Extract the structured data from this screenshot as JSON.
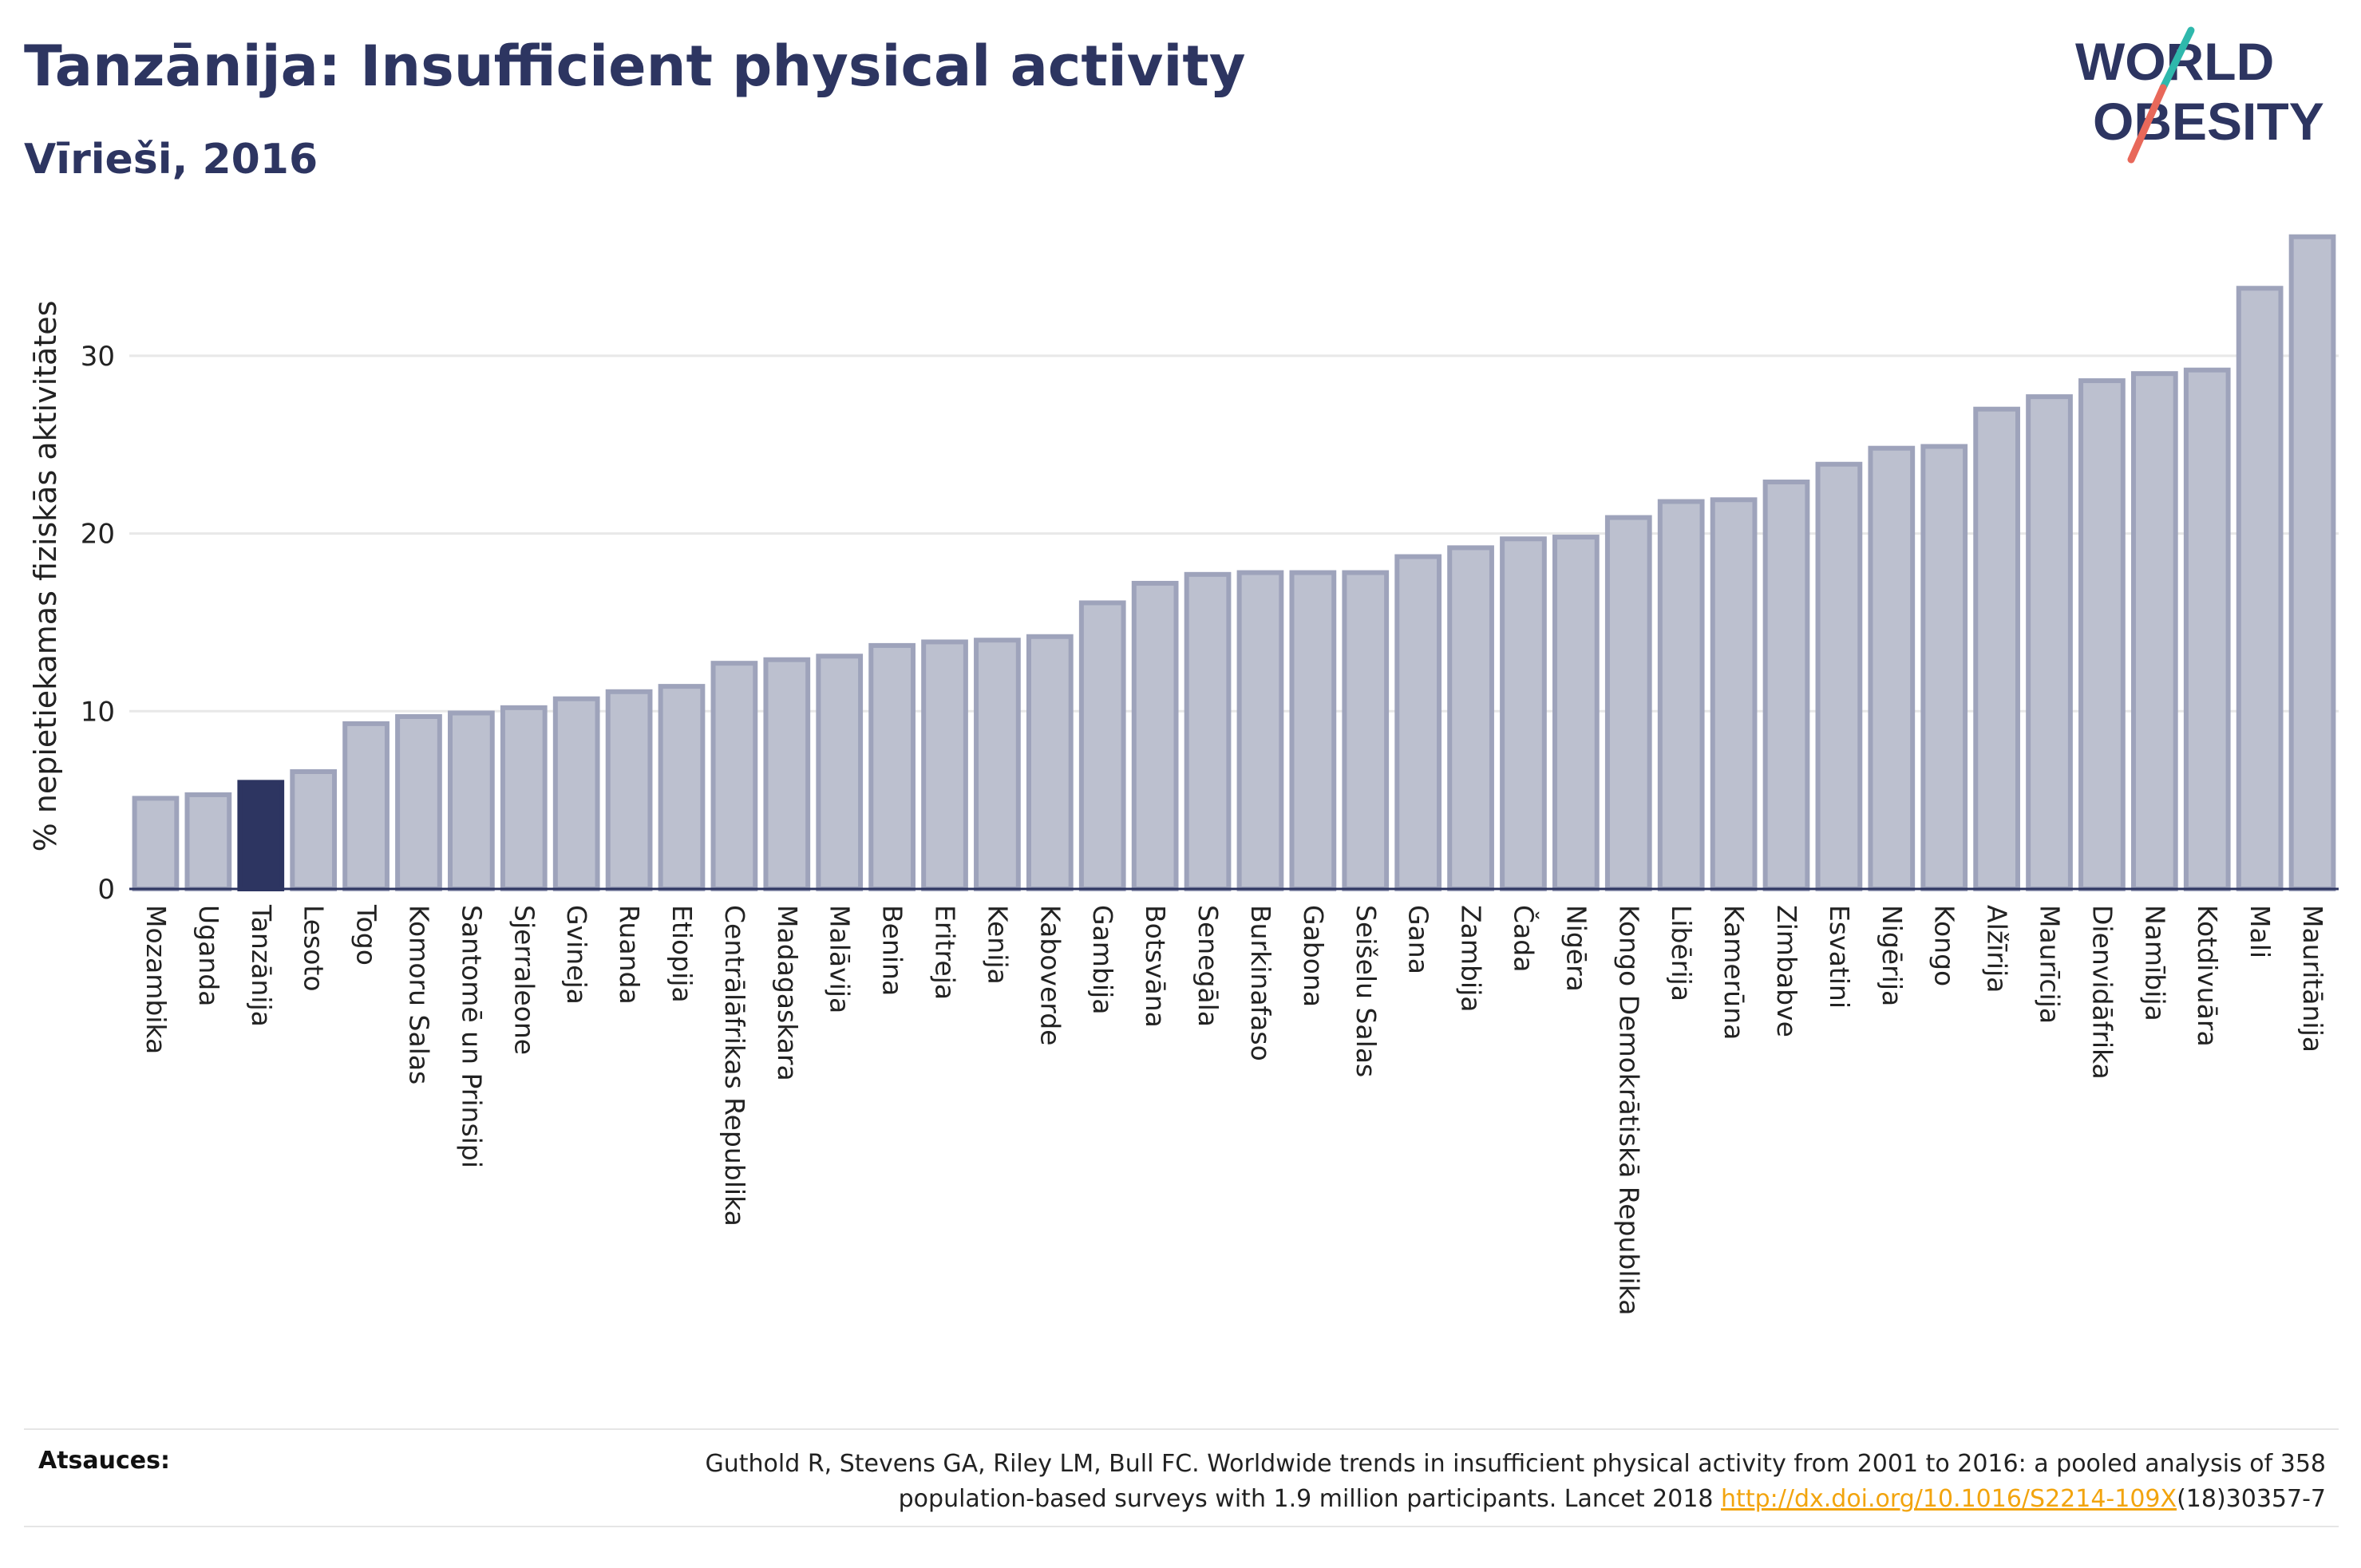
{
  "header": {
    "title": "Tanzānija: Insufficient physical activity",
    "subtitle": "Vīrieši, 2016"
  },
  "logo": {
    "line1": "WORLD",
    "line2": "OBESITY"
  },
  "footer": {
    "sources_label": "Atsauces:",
    "citation_line1": "Guthold R, Stevens GA, Riley LM, Bull FC. Worldwide trends in insufficient physical activity from 2001 to 2016: a pooled analysis of 358",
    "citation_line2_prefix": "population-based surveys with 1.9 million participants. Lancet 2018 ",
    "citation_link": "http://dx.doi.org/10.1016/S2214-109X",
    "citation_suffix": "(18)30357-7"
  },
  "colors": {
    "bar": "#bcc0cf",
    "bar_stroke": "#9ea3bb",
    "highlight": "#2d3561",
    "text": "#2d3561",
    "grid": "#e8e8e8",
    "link": "#f2a40e"
  },
  "chart_data": {
    "type": "bar",
    "title": "Tanzānija: Insufficient physical activity",
    "subtitle": "Vīrieši, 2016",
    "ylabel": "% nepietiekamas fiziskās aktivitātes",
    "xlabel": "",
    "ylim": [
      0,
      37
    ],
    "yticks": [
      0,
      10,
      20,
      30
    ],
    "grid": true,
    "highlight": "Tanzānija",
    "categories": [
      "Mozambika",
      "Uganda",
      "Tanzānija",
      "Lesoto",
      "Togo",
      "Komoru Salas",
      "Santomē un Prinsipi",
      "Sjerraleone",
      "Gvineja",
      "Ruanda",
      "Etiopija",
      "Centrālāfrikas Republika",
      "Madagaskara",
      "Malāvija",
      "Benina",
      "Eritreja",
      "Kenija",
      "Kaboverde",
      "Gambija",
      "Botsvāna",
      "Senegāla",
      "Burkinafaso",
      "Gabona",
      "Seišelu Salas",
      "Gana",
      "Zambija",
      "Čada",
      "Nigēra",
      "Kongo Demokrātiskā Republika",
      "Libērija",
      "Kamerūna",
      "Zimbabve",
      "Esvatini",
      "Nigērija",
      "Kongo",
      "Alžīrija",
      "Maurīcija",
      "Dienvidāfrika",
      "Namībija",
      "Kotdivuāra",
      "Mali",
      "Mauritānija"
    ],
    "values": [
      5.1,
      5.3,
      6.0,
      6.6,
      9.3,
      9.7,
      9.9,
      10.2,
      10.7,
      11.1,
      11.4,
      12.7,
      12.9,
      13.1,
      13.7,
      13.9,
      14.0,
      14.2,
      16.1,
      17.2,
      17.7,
      17.8,
      17.8,
      17.8,
      18.7,
      19.2,
      19.7,
      19.8,
      20.9,
      21.8,
      21.9,
      22.9,
      23.9,
      24.8,
      24.9,
      27.0,
      27.7,
      28.6,
      29.0,
      29.2,
      33.8,
      36.7
    ]
  }
}
